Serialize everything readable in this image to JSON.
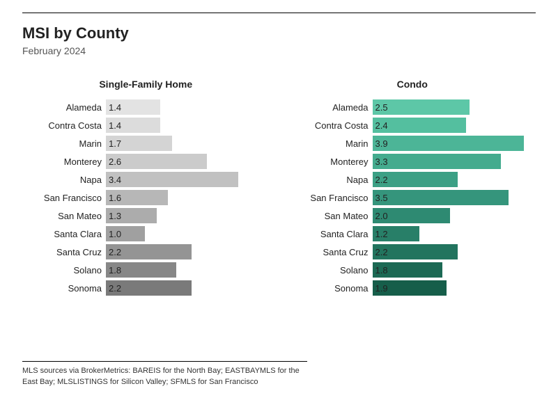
{
  "header": {
    "title": "MSI by County",
    "subtitle": "February 2024"
  },
  "footnote": "MLS sources via BrokerMetrics: BAREIS for the North Bay; EASTBAYMLS for the East Bay; MLSLISTINGS for Silicon Valley; SFMLS for San Francisco",
  "chart": {
    "type": "grouped-horizontal-bar",
    "axis_max": 4.2,
    "label_fontsize": 13,
    "value_fontsize": 13,
    "panel_title_fontsize": 14,
    "panel_title_weight": 700,
    "background_color": "#ffffff",
    "panels": [
      {
        "title": "Single-Family Home",
        "palette": "gray-gradient",
        "rows": [
          {
            "label": "Alameda",
            "value": 1.4,
            "color": "#e3e3e3"
          },
          {
            "label": "Contra Costa",
            "value": 1.4,
            "color": "#dcdcdc"
          },
          {
            "label": "Marin",
            "value": 1.7,
            "color": "#d4d4d4"
          },
          {
            "label": "Monterey",
            "value": 2.6,
            "color": "#cbcbcb"
          },
          {
            "label": "Napa",
            "value": 3.4,
            "color": "#c1c1c1"
          },
          {
            "label": "San Francisco",
            "value": 1.6,
            "color": "#b7b7b7"
          },
          {
            "label": "San Mateo",
            "value": 1.3,
            "color": "#acacac"
          },
          {
            "label": "Santa Clara",
            "value": 1.0,
            "color": "#a0a0a0"
          },
          {
            "label": "Santa Cruz",
            "value": 2.2,
            "color": "#949494"
          },
          {
            "label": "Solano",
            "value": 1.8,
            "color": "#878787"
          },
          {
            "label": "Sonoma",
            "value": 2.2,
            "color": "#7a7a7a"
          }
        ]
      },
      {
        "title": "Condo",
        "palette": "teal-gradient",
        "rows": [
          {
            "label": "Alameda",
            "value": 2.5,
            "color": "#5dc7a7"
          },
          {
            "label": "Contra Costa",
            "value": 2.4,
            "color": "#54bf9f"
          },
          {
            "label": "Marin",
            "value": 3.9,
            "color": "#4cb597"
          },
          {
            "label": "Monterey",
            "value": 3.3,
            "color": "#44ab8e"
          },
          {
            "label": "Napa",
            "value": 2.2,
            "color": "#3ca085"
          },
          {
            "label": "San Francisco",
            "value": 3.5,
            "color": "#35957c"
          },
          {
            "label": "San Mateo",
            "value": 2.0,
            "color": "#2e8a72"
          },
          {
            "label": "Santa Clara",
            "value": 1.2,
            "color": "#287f68"
          },
          {
            "label": "Santa Cruz",
            "value": 2.2,
            "color": "#22745e"
          },
          {
            "label": "Solano",
            "value": 1.8,
            "color": "#1c6954"
          },
          {
            "label": "Sonoma",
            "value": 1.9,
            "color": "#165e4a"
          }
        ]
      }
    ]
  }
}
